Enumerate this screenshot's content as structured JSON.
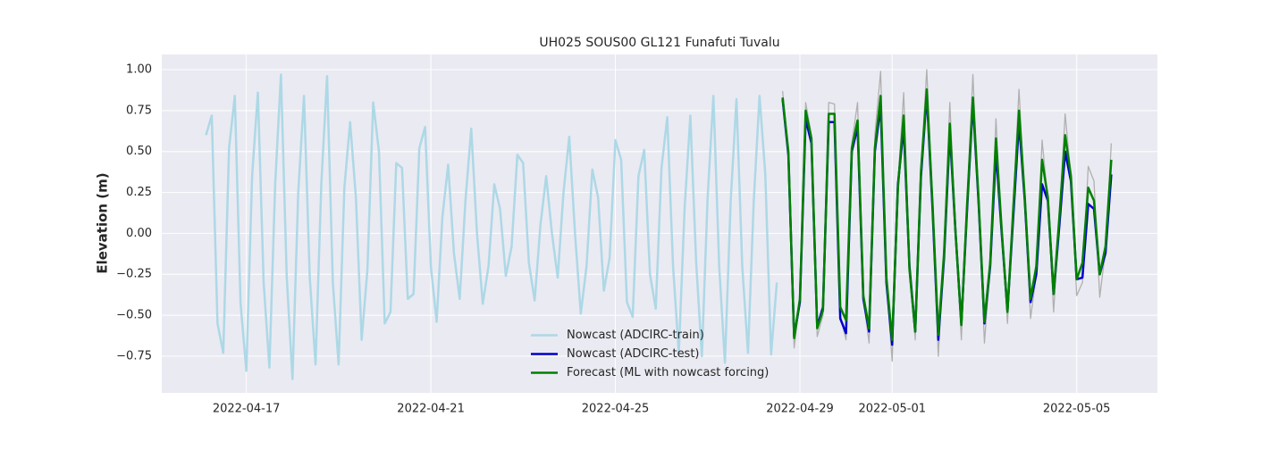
{
  "chart_data": {
    "type": "line",
    "title": "UH025 SOUS00 GL121 Funafuti Tuvalu",
    "ylabel": "Elevation (m)",
    "xlim": [
      "2022-04-15 04:00",
      "2022-05-06 18:00"
    ],
    "xticks": [
      "2022-04-17",
      "2022-04-21",
      "2022-04-25",
      "2022-04-29",
      "2022-05-01",
      "2022-05-05"
    ],
    "ylim": [
      -0.974,
      1.093
    ],
    "yticks": [
      {
        "value": -0.75,
        "label": "−0.75"
      },
      {
        "value": -0.5,
        "label": "−0.50"
      },
      {
        "value": -0.25,
        "label": "−0.25"
      },
      {
        "value": 0,
        "label": "0.00"
      },
      {
        "value": 0.25,
        "label": "0.25"
      },
      {
        "value": 0.5,
        "label": "0.50"
      },
      {
        "value": 0.75,
        "label": "0.75"
      },
      {
        "value": 1,
        "label": "1.00"
      }
    ],
    "grid": true,
    "legend": "lower center",
    "series": [
      {
        "color": "#b0b0b0",
        "x": [
          "2022-04-28 15:00",
          "2022-04-28 18:00",
          "2022-04-28 21:00",
          "2022-04-29 00:00",
          "2022-04-29 03:00",
          "2022-04-29 06:00",
          "2022-04-29 09:00",
          "2022-04-29 12:00",
          "2022-04-29 15:00",
          "2022-04-29 18:00",
          "2022-04-29 21:00",
          "2022-04-30 00:00",
          "2022-04-30 03:00",
          "2022-04-30 06:00",
          "2022-04-30 09:00",
          "2022-04-30 12:00",
          "2022-04-30 15:00",
          "2022-04-30 18:00",
          "2022-04-30 21:00",
          "2022-05-01 00:00",
          "2022-05-01 03:00",
          "2022-05-01 06:00",
          "2022-05-01 09:00",
          "2022-05-01 12:00",
          "2022-05-01 15:00",
          "2022-05-01 18:00",
          "2022-05-01 21:00",
          "2022-05-02 00:00",
          "2022-05-02 03:00",
          "2022-05-02 06:00",
          "2022-05-02 09:00",
          "2022-05-02 12:00",
          "2022-05-02 15:00",
          "2022-05-02 18:00",
          "2022-05-02 21:00",
          "2022-05-03 00:00",
          "2022-05-03 03:00",
          "2022-05-03 06:00",
          "2022-05-03 09:00",
          "2022-05-03 12:00",
          "2022-05-03 15:00",
          "2022-05-03 18:00",
          "2022-05-03 21:00",
          "2022-05-04 00:00",
          "2022-05-04 03:00",
          "2022-05-04 06:00",
          "2022-05-04 09:00",
          "2022-05-04 12:00",
          "2022-05-04 15:00",
          "2022-05-04 18:00",
          "2022-05-04 21:00",
          "2022-05-05 00:00",
          "2022-05-05 03:00",
          "2022-05-05 06:00",
          "2022-05-05 09:00",
          "2022-05-05 12:00",
          "2022-05-05 15:00",
          "2022-05-05 18:00"
        ],
        "values": [
          0.87,
          0.5,
          -0.7,
          -0.4,
          0.8,
          0.6,
          -0.63,
          -0.5,
          0.8,
          0.79,
          -0.5,
          -0.65,
          0.55,
          0.8,
          -0.4,
          -0.67,
          0.6,
          0.99,
          -0.3,
          -0.78,
          0.3,
          0.86,
          -0.2,
          -0.65,
          0.4,
          1.0,
          0.2,
          -0.75,
          -0.1,
          0.8,
          0.0,
          -0.65,
          0.2,
          0.97,
          0.2,
          -0.67,
          -0.2,
          0.7,
          0.0,
          -0.55,
          0.2,
          0.88,
          0.2,
          -0.52,
          -0.25,
          0.57,
          0.2,
          -0.48,
          0.1,
          0.73,
          0.35,
          -0.38,
          -0.3,
          0.41,
          0.32,
          -0.39,
          -0.1,
          0.55
        ]
      },
      {
        "name": "Nowcast (ADCIRC-train)",
        "color": "#add8e6",
        "x": [
          "2022-04-16 03:00",
          "2022-04-16 06:00",
          "2022-04-16 09:00",
          "2022-04-16 12:00",
          "2022-04-16 15:00",
          "2022-04-16 18:00",
          "2022-04-16 21:00",
          "2022-04-17 00:00",
          "2022-04-17 03:00",
          "2022-04-17 06:00",
          "2022-04-17 09:00",
          "2022-04-17 12:00",
          "2022-04-17 15:00",
          "2022-04-17 18:00",
          "2022-04-17 21:00",
          "2022-04-18 00:00",
          "2022-04-18 03:00",
          "2022-04-18 06:00",
          "2022-04-18 09:00",
          "2022-04-18 12:00",
          "2022-04-18 15:00",
          "2022-04-18 18:00",
          "2022-04-18 21:00",
          "2022-04-19 00:00",
          "2022-04-19 03:00",
          "2022-04-19 06:00",
          "2022-04-19 09:00",
          "2022-04-19 12:00",
          "2022-04-19 15:00",
          "2022-04-19 18:00",
          "2022-04-19 21:00",
          "2022-04-20 00:00",
          "2022-04-20 03:00",
          "2022-04-20 06:00",
          "2022-04-20 09:00",
          "2022-04-20 12:00",
          "2022-04-20 15:00",
          "2022-04-20 18:00",
          "2022-04-20 21:00",
          "2022-04-21 00:00",
          "2022-04-21 03:00",
          "2022-04-21 06:00",
          "2022-04-21 09:00",
          "2022-04-21 12:00",
          "2022-04-21 15:00",
          "2022-04-21 18:00",
          "2022-04-21 21:00",
          "2022-04-22 00:00",
          "2022-04-22 03:00",
          "2022-04-22 06:00",
          "2022-04-22 09:00",
          "2022-04-22 12:00",
          "2022-04-22 15:00",
          "2022-04-22 18:00",
          "2022-04-22 21:00",
          "2022-04-23 00:00",
          "2022-04-23 03:00",
          "2022-04-23 06:00",
          "2022-04-23 09:00",
          "2022-04-23 12:00",
          "2022-04-23 15:00",
          "2022-04-23 18:00",
          "2022-04-23 21:00",
          "2022-04-24 00:00",
          "2022-04-24 03:00",
          "2022-04-24 06:00",
          "2022-04-24 09:00",
          "2022-04-24 12:00",
          "2022-04-24 15:00",
          "2022-04-24 18:00",
          "2022-04-24 21:00",
          "2022-04-25 00:00",
          "2022-04-25 03:00",
          "2022-04-25 06:00",
          "2022-04-25 09:00",
          "2022-04-25 12:00",
          "2022-04-25 15:00",
          "2022-04-25 18:00",
          "2022-04-25 21:00",
          "2022-04-26 00:00",
          "2022-04-26 03:00",
          "2022-04-26 06:00",
          "2022-04-26 09:00",
          "2022-04-26 12:00",
          "2022-04-26 15:00",
          "2022-04-26 18:00",
          "2022-04-26 21:00",
          "2022-04-27 00:00",
          "2022-04-27 03:00",
          "2022-04-27 06:00",
          "2022-04-27 09:00",
          "2022-04-27 12:00",
          "2022-04-27 15:00",
          "2022-04-27 18:00",
          "2022-04-27 21:00",
          "2022-04-28 00:00",
          "2022-04-28 03:00",
          "2022-04-28 06:00",
          "2022-04-28 09:00",
          "2022-04-28 12:00"
        ],
        "values": [
          0.6,
          0.72,
          -0.55,
          -0.73,
          0.52,
          0.84,
          -0.43,
          -0.84,
          0.35,
          0.86,
          -0.3,
          -0.82,
          0.3,
          0.97,
          -0.26,
          -0.89,
          0.25,
          0.84,
          -0.27,
          -0.8,
          0.3,
          0.96,
          -0.3,
          -0.8,
          0.28,
          0.68,
          0.22,
          -0.65,
          -0.22,
          0.8,
          0.5,
          -0.55,
          -0.48,
          0.43,
          0.4,
          -0.4,
          -0.37,
          0.52,
          0.65,
          -0.2,
          -0.54,
          0.1,
          0.42,
          -0.12,
          -0.4,
          0.2,
          0.64,
          0.0,
          -0.43,
          -0.2,
          0.3,
          0.15,
          -0.26,
          -0.08,
          0.48,
          0.43,
          -0.18,
          -0.41,
          0.05,
          0.35,
          0.0,
          -0.27,
          0.25,
          0.59,
          0.0,
          -0.49,
          -0.2,
          0.39,
          0.22,
          -0.35,
          -0.15,
          0.57,
          0.45,
          -0.42,
          -0.51,
          0.35,
          0.51,
          -0.25,
          -0.46,
          0.4,
          0.71,
          -0.2,
          -0.73,
          0.15,
          0.72,
          -0.17,
          -0.75,
          0.22,
          0.84,
          -0.2,
          -0.79,
          0.2,
          0.82,
          -0.2,
          -0.73,
          0.2,
          0.84,
          0.36,
          -0.74,
          -0.3
        ]
      },
      {
        "name": "Nowcast (ADCIRC-test)",
        "color": "#0000cd",
        "x": [
          "2022-04-28 15:00",
          "2022-04-28 18:00",
          "2022-04-28 21:00",
          "2022-04-29 00:00",
          "2022-04-29 03:00",
          "2022-04-29 06:00",
          "2022-04-29 09:00",
          "2022-04-29 12:00",
          "2022-04-29 15:00",
          "2022-04-29 18:00",
          "2022-04-29 21:00",
          "2022-04-30 00:00",
          "2022-04-30 03:00",
          "2022-04-30 06:00",
          "2022-04-30 09:00",
          "2022-04-30 12:00",
          "2022-04-30 15:00",
          "2022-04-30 18:00",
          "2022-04-30 21:00",
          "2022-05-01 00:00",
          "2022-05-01 03:00",
          "2022-05-01 06:00",
          "2022-05-01 09:00",
          "2022-05-01 12:00",
          "2022-05-01 15:00",
          "2022-05-01 18:00",
          "2022-05-01 21:00",
          "2022-05-02 00:00",
          "2022-05-02 03:00",
          "2022-05-02 06:00",
          "2022-05-02 09:00",
          "2022-05-02 12:00",
          "2022-05-02 15:00",
          "2022-05-02 18:00",
          "2022-05-02 21:00",
          "2022-05-03 00:00",
          "2022-05-03 03:00",
          "2022-05-03 06:00",
          "2022-05-03 09:00",
          "2022-05-03 12:00",
          "2022-05-03 15:00",
          "2022-05-03 18:00",
          "2022-05-03 21:00",
          "2022-05-04 00:00",
          "2022-05-04 03:00",
          "2022-05-04 06:00",
          "2022-05-04 09:00",
          "2022-05-04 12:00",
          "2022-05-04 15:00",
          "2022-05-04 18:00",
          "2022-05-04 21:00",
          "2022-05-05 00:00",
          "2022-05-05 03:00",
          "2022-05-05 06:00",
          "2022-05-05 09:00",
          "2022-05-05 12:00",
          "2022-05-05 15:00",
          "2022-05-05 18:00"
        ],
        "values": [
          0.82,
          0.48,
          -0.63,
          -0.42,
          0.7,
          0.55,
          -0.57,
          -0.45,
          0.68,
          0.68,
          -0.52,
          -0.61,
          0.5,
          0.65,
          -0.4,
          -0.6,
          0.5,
          0.78,
          -0.3,
          -0.68,
          0.3,
          0.65,
          -0.2,
          -0.6,
          0.35,
          0.85,
          0.15,
          -0.65,
          -0.15,
          0.62,
          0.0,
          -0.55,
          0.15,
          0.8,
          0.18,
          -0.55,
          -0.2,
          0.5,
          0.0,
          -0.47,
          0.1,
          0.68,
          0.2,
          -0.42,
          -0.25,
          0.3,
          0.2,
          -0.37,
          0.05,
          0.5,
          0.32,
          -0.28,
          -0.27,
          0.18,
          0.15,
          -0.25,
          -0.12,
          0.36
        ]
      },
      {
        "name": "Forecast (ML with nowcast forcing)",
        "color": "#008000",
        "x": [
          "2022-04-28 15:00",
          "2022-04-28 18:00",
          "2022-04-28 21:00",
          "2022-04-29 00:00",
          "2022-04-29 03:00",
          "2022-04-29 06:00",
          "2022-04-29 09:00",
          "2022-04-29 12:00",
          "2022-04-29 15:00",
          "2022-04-29 18:00",
          "2022-04-29 21:00",
          "2022-04-30 00:00",
          "2022-04-30 03:00",
          "2022-04-30 06:00",
          "2022-04-30 09:00",
          "2022-04-30 12:00",
          "2022-04-30 15:00",
          "2022-04-30 18:00",
          "2022-04-30 21:00",
          "2022-05-01 00:00",
          "2022-05-01 03:00",
          "2022-05-01 06:00",
          "2022-05-01 09:00",
          "2022-05-01 12:00",
          "2022-05-01 15:00",
          "2022-05-01 18:00",
          "2022-05-01 21:00",
          "2022-05-02 00:00",
          "2022-05-02 03:00",
          "2022-05-02 06:00",
          "2022-05-02 09:00",
          "2022-05-02 12:00",
          "2022-05-02 15:00",
          "2022-05-02 18:00",
          "2022-05-02 21:00",
          "2022-05-03 00:00",
          "2022-05-03 03:00",
          "2022-05-03 06:00",
          "2022-05-03 09:00",
          "2022-05-03 12:00",
          "2022-05-03 15:00",
          "2022-05-03 18:00",
          "2022-05-03 21:00",
          "2022-05-04 00:00",
          "2022-05-04 03:00",
          "2022-05-04 06:00",
          "2022-05-04 09:00",
          "2022-05-04 12:00",
          "2022-05-04 15:00",
          "2022-05-04 18:00",
          "2022-05-04 21:00",
          "2022-05-05 00:00",
          "2022-05-05 03:00",
          "2022-05-05 06:00",
          "2022-05-05 09:00",
          "2022-05-05 12:00",
          "2022-05-05 15:00",
          "2022-05-05 18:00"
        ],
        "values": [
          0.83,
          0.5,
          -0.64,
          -0.4,
          0.75,
          0.58,
          -0.58,
          -0.47,
          0.73,
          0.73,
          -0.45,
          -0.53,
          0.52,
          0.69,
          -0.38,
          -0.58,
          0.52,
          0.84,
          -0.27,
          -0.65,
          0.28,
          0.72,
          -0.22,
          -0.6,
          0.38,
          0.88,
          0.18,
          -0.62,
          -0.12,
          0.67,
          0.0,
          -0.56,
          0.18,
          0.83,
          0.2,
          -0.54,
          -0.18,
          0.58,
          0.02,
          -0.48,
          0.15,
          0.75,
          0.22,
          -0.4,
          -0.2,
          0.45,
          0.22,
          -0.37,
          0.1,
          0.6,
          0.35,
          -0.28,
          -0.18,
          0.28,
          0.2,
          -0.25,
          -0.08,
          0.45
        ]
      }
    ]
  }
}
